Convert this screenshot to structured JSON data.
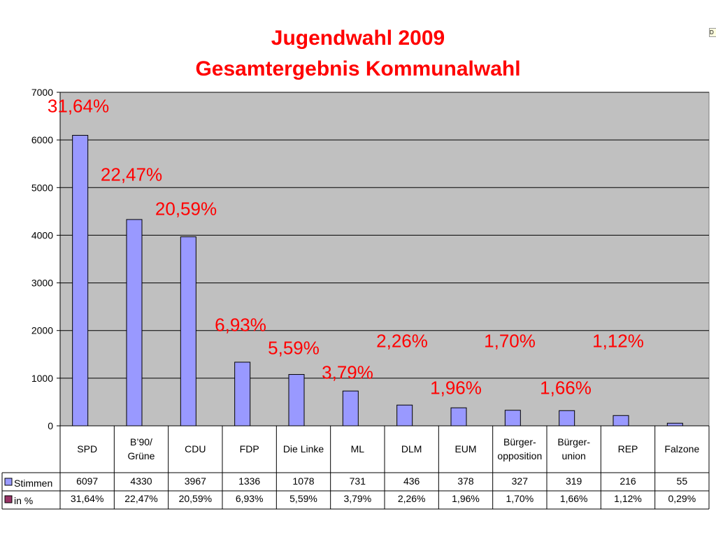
{
  "chart_data": {
    "type": "bar",
    "title": [
      "Jugendwahl 2009",
      "Gesamtergebnis Kommunalwahl"
    ],
    "categories": [
      "SPD",
      "B’90/\nGrüne",
      "CDU",
      "FDP",
      "Die Linke",
      "ML",
      "DLM",
      "EUM",
      "Bürger-\nopposition",
      "Bürger-\nunion",
      "REP",
      "Falzone"
    ],
    "series": [
      {
        "name": "Stimmen",
        "color": "#9999ff",
        "values": [
          6097,
          4330,
          3967,
          1336,
          1078,
          731,
          436,
          378,
          327,
          319,
          216,
          55
        ],
        "labels": [
          "6097",
          "4330",
          "3967",
          "1336",
          "1078",
          "731",
          "436",
          "378",
          "327",
          "319",
          "216",
          "55"
        ]
      },
      {
        "name": "in %",
        "color": "#993366",
        "values": [
          31.64,
          22.47,
          20.59,
          6.93,
          5.59,
          3.79,
          2.26,
          1.96,
          1.7,
          1.66,
          1.12,
          0.29
        ],
        "labels": [
          "31,64%",
          "22,47%",
          "20,59%",
          "6,93%",
          "5,59%",
          "3,79%",
          "2,26%",
          "1,96%",
          "1,70%",
          "1,66%",
          "1,12%",
          "0,29%"
        ]
      }
    ],
    "annotations": [
      "31,64%",
      "22,47%",
      "20,59%",
      "6,93%",
      "5,59%",
      "3,79%",
      "2,26%",
      "1,96%",
      "1,70%",
      "1,66%",
      "1,12%"
    ],
    "ylim": [
      0,
      7000
    ],
    "yticks": [
      "0",
      "1000",
      "2000",
      "3000",
      "4000",
      "5000",
      "6000",
      "7000"
    ],
    "grid": true,
    "plot_background": "#c0c0c0",
    "annotation_color": "#ff0000",
    "legend": "data-table"
  },
  "corner_badge": "D"
}
